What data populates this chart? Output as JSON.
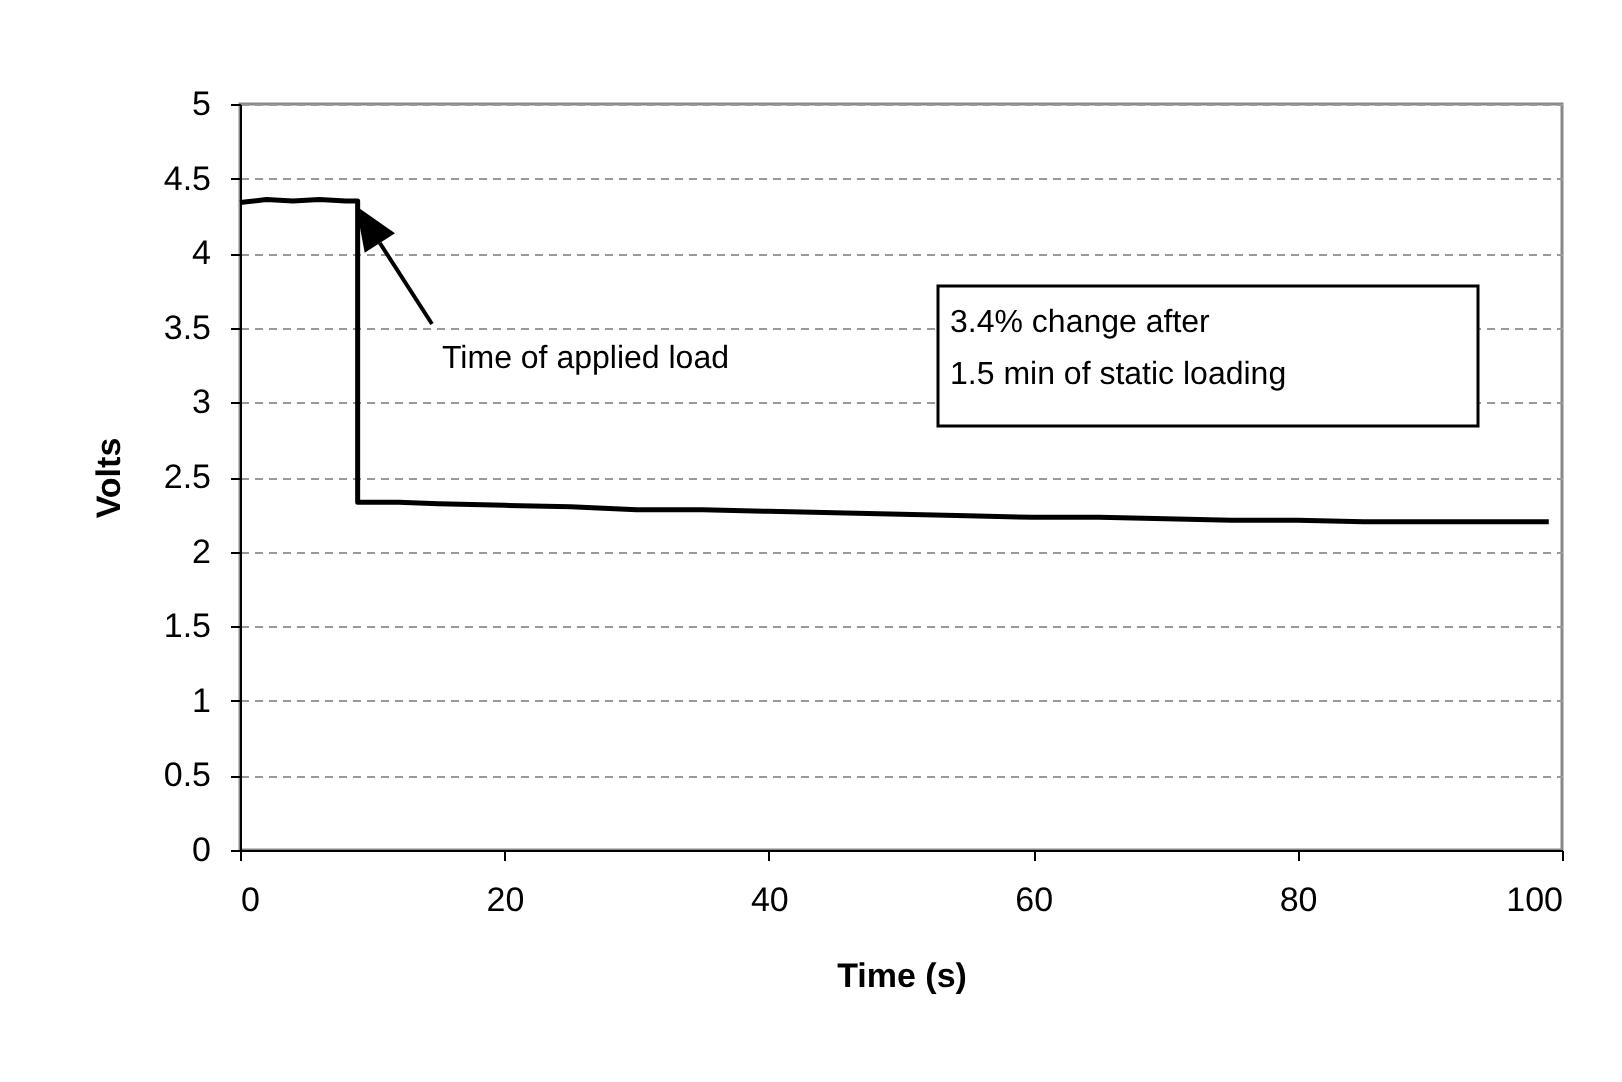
{
  "chart_data": {
    "type": "line",
    "xlabel": "Time (s)",
    "ylabel": "Volts",
    "series": [
      {
        "color": "#000000",
        "x": [
          0,
          2,
          4,
          6,
          8,
          8.9,
          8.9,
          10,
          12,
          15,
          20,
          25,
          30,
          35,
          40,
          45,
          50,
          55,
          60,
          65,
          70,
          75,
          80,
          85,
          90,
          95,
          99
        ],
        "values": [
          4.34,
          4.36,
          4.35,
          4.36,
          4.35,
          4.35,
          2.33,
          2.33,
          2.33,
          2.32,
          2.31,
          2.3,
          2.28,
          2.28,
          2.27,
          2.26,
          2.25,
          2.24,
          2.23,
          2.23,
          2.22,
          2.21,
          2.21,
          2.2,
          2.2,
          2.2,
          2.2
        ]
      }
    ],
    "xlim": [
      0,
      100
    ],
    "xticks": [
      0,
      20,
      40,
      60,
      80,
      100
    ],
    "ylim": [
      0,
      5
    ],
    "yticks": [
      0,
      0.5,
      1,
      1.5,
      2,
      2.5,
      3,
      3.5,
      4,
      4.5,
      5
    ],
    "grid": "y",
    "legend": false,
    "marker": "none",
    "line_style": "solid",
    "annotations": [
      "Time of applied load",
      "3.4% change after\n1.5 min of static loading"
    ]
  }
}
